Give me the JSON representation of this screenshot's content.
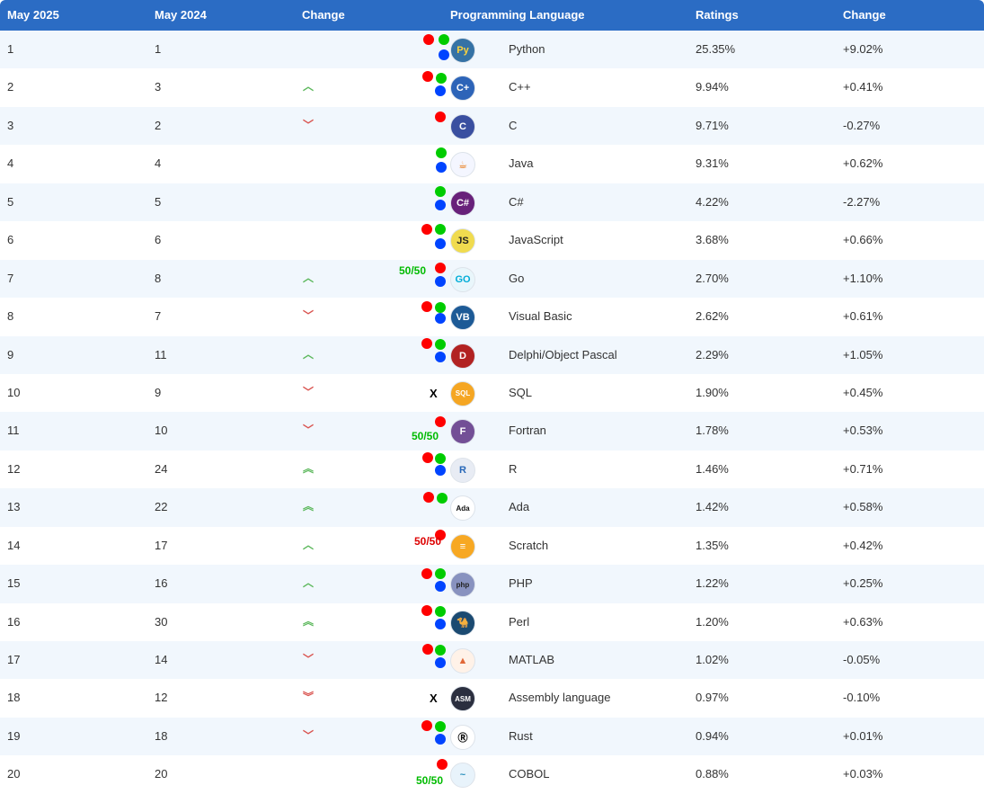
{
  "headers": {
    "now": "May 2025",
    "prev": "May 2024",
    "change": "Change",
    "language": "Programming Language",
    "ratings": "Ratings",
    "delta": "Change"
  },
  "rows": [
    {
      "now": "1",
      "prev": "1",
      "trend": "same",
      "lang": "Python",
      "rating": "25.35%",
      "delta": "+9.02%",
      "icon": "python-logo-icon"
    },
    {
      "now": "2",
      "prev": "3",
      "trend": "up",
      "lang": "C++",
      "rating": "9.94%",
      "delta": "+0.41%",
      "icon": "cpp-logo-icon"
    },
    {
      "now": "3",
      "prev": "2",
      "trend": "down",
      "lang": "C",
      "rating": "9.71%",
      "delta": "-0.27%",
      "icon": "c-logo-icon"
    },
    {
      "now": "4",
      "prev": "4",
      "trend": "same",
      "lang": "Java",
      "rating": "9.31%",
      "delta": "+0.62%",
      "icon": "java-logo-icon"
    },
    {
      "now": "5",
      "prev": "5",
      "trend": "same",
      "lang": "C#",
      "rating": "4.22%",
      "delta": "-2.27%",
      "icon": "csharp-logo-icon"
    },
    {
      "now": "6",
      "prev": "6",
      "trend": "same",
      "lang": "JavaScript",
      "rating": "3.68%",
      "delta": "+0.66%",
      "icon": "javascript-logo-icon"
    },
    {
      "now": "7",
      "prev": "8",
      "trend": "up",
      "lang": "Go",
      "rating": "2.70%",
      "delta": "+1.10%",
      "icon": "go-logo-icon"
    },
    {
      "now": "8",
      "prev": "7",
      "trend": "down",
      "lang": "Visual Basic",
      "rating": "2.62%",
      "delta": "+0.61%",
      "icon": "visual-basic-logo-icon"
    },
    {
      "now": "9",
      "prev": "11",
      "trend": "up",
      "lang": "Delphi/Object Pascal",
      "rating": "2.29%",
      "delta": "+1.05%",
      "icon": "delphi-logo-icon"
    },
    {
      "now": "10",
      "prev": "9",
      "trend": "down",
      "lang": "SQL",
      "rating": "1.90%",
      "delta": "+0.45%",
      "icon": "sql-logo-icon"
    },
    {
      "now": "11",
      "prev": "10",
      "trend": "down",
      "lang": "Fortran",
      "rating": "1.78%",
      "delta": "+0.53%",
      "icon": "fortran-logo-icon"
    },
    {
      "now": "12",
      "prev": "24",
      "trend": "up2",
      "lang": "R",
      "rating": "1.46%",
      "delta": "+0.71%",
      "icon": "r-logo-icon"
    },
    {
      "now": "13",
      "prev": "22",
      "trend": "up2",
      "lang": "Ada",
      "rating": "1.42%",
      "delta": "+0.58%",
      "icon": "ada-logo-icon"
    },
    {
      "now": "14",
      "prev": "17",
      "trend": "up",
      "lang": "Scratch",
      "rating": "1.35%",
      "delta": "+0.42%",
      "icon": "scratch-logo-icon"
    },
    {
      "now": "15",
      "prev": "16",
      "trend": "up",
      "lang": "PHP",
      "rating": "1.22%",
      "delta": "+0.25%",
      "icon": "php-logo-icon"
    },
    {
      "now": "16",
      "prev": "30",
      "trend": "up2",
      "lang": "Perl",
      "rating": "1.20%",
      "delta": "+0.63%",
      "icon": "perl-logo-icon"
    },
    {
      "now": "17",
      "prev": "14",
      "trend": "down",
      "lang": "MATLAB",
      "rating": "1.02%",
      "delta": "-0.05%",
      "icon": "matlab-logo-icon"
    },
    {
      "now": "18",
      "prev": "12",
      "trend": "down2",
      "lang": "Assembly language",
      "rating": "0.97%",
      "delta": "-0.10%",
      "icon": "assembly-logo-icon"
    },
    {
      "now": "19",
      "prev": "18",
      "trend": "down",
      "lang": "Rust",
      "rating": "0.94%",
      "delta": "+0.01%",
      "icon": "rust-logo-icon"
    },
    {
      "now": "20",
      "prev": "20",
      "trend": "same",
      "lang": "COBOL",
      "rating": "0.88%",
      "delta": "+0.03%",
      "icon": "cobol-logo-icon"
    }
  ],
  "badges": {
    "fifty": "50/50",
    "x": "X"
  },
  "colors": {
    "header_bg": "#2b6cc4",
    "alt_row": "#f1f7fd",
    "up": "#5cb85c",
    "down": "#d9534f"
  }
}
